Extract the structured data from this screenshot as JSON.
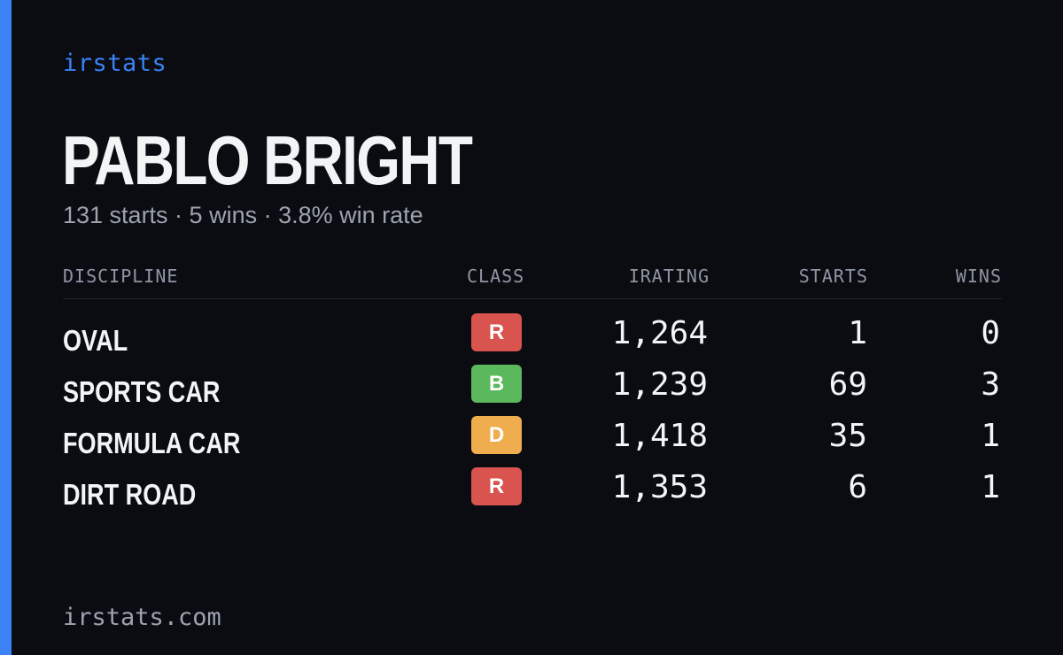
{
  "brand": "irstats",
  "driver": {
    "name": "PABLO BRIGHT",
    "summary": "131 starts · 5 wins · 3.8% win rate"
  },
  "table": {
    "headers": {
      "discipline": "DISCIPLINE",
      "class": "CLASS",
      "irating": "IRATING",
      "starts": "STARTS",
      "wins": "WINS"
    },
    "rows": [
      {
        "discipline": "OVAL",
        "class": "R",
        "class_color": "#d9534f",
        "irating": "1,264",
        "starts": "1",
        "wins": "0"
      },
      {
        "discipline": "SPORTS CAR",
        "class": "B",
        "class_color": "#5cb85c",
        "irating": "1,239",
        "starts": "69",
        "wins": "3"
      },
      {
        "discipline": "FORMULA CAR",
        "class": "D",
        "class_color": "#f0ad4e",
        "irating": "1,418",
        "starts": "35",
        "wins": "1"
      },
      {
        "discipline": "DIRT ROAD",
        "class": "R",
        "class_color": "#d9534f",
        "irating": "1,353",
        "starts": "6",
        "wins": "1"
      }
    ]
  },
  "footer": "irstats.com",
  "colors": {
    "accent": "#3b82f6",
    "background": "#0a0c12"
  }
}
